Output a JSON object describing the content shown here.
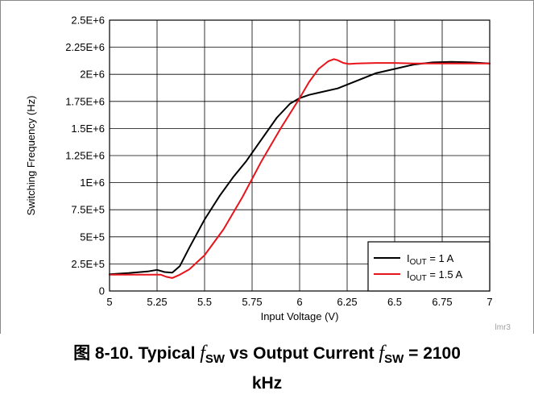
{
  "caption": {
    "prefix": "图 8-10. Typical ",
    "f_symbol": "f",
    "sub1": "SW",
    "middle": " vs Output Current ",
    "sub2": "SW",
    "suffix": " = 2100",
    "line2": "kHz"
  },
  "watermark": "lmr3",
  "chart_data": {
    "type": "line",
    "title": "",
    "xlabel": "Input Voltage (V)",
    "ylabel": "Switching Frequency (Hz)",
    "xlim": [
      5,
      7
    ],
    "ylim": [
      0,
      2500000
    ],
    "x_ticks": [
      5,
      5.25,
      5.5,
      5.75,
      6,
      6.25,
      6.5,
      6.75,
      7
    ],
    "x_tick_labels": [
      "5",
      "5.25",
      "5.5",
      "5.75",
      "6",
      "6.25",
      "6.5",
      "6.75",
      "7"
    ],
    "y_ticks": [
      0,
      250000,
      500000,
      750000,
      1000000,
      1250000,
      1500000,
      1750000,
      2000000,
      2250000,
      2500000
    ],
    "y_tick_labels": [
      "0",
      "2.5E+5",
      "5E+5",
      "7.5E+5",
      "1E+6",
      "1.25E+6",
      "1.5E+6",
      "1.75E+6",
      "2E+6",
      "2.25E+6",
      "2.5E+6"
    ],
    "grid": true,
    "legend_position": "bottom-right",
    "series": [
      {
        "name": "I",
        "name_sub": "OUT",
        "name_suffix": " = 1 A",
        "color": "#000000",
        "x": [
          5.0,
          5.1,
          5.2,
          5.25,
          5.29,
          5.33,
          5.37,
          5.42,
          5.5,
          5.58,
          5.65,
          5.72,
          5.8,
          5.88,
          5.95,
          6.0,
          6.05,
          6.1,
          6.2,
          6.3,
          6.4,
          6.5,
          6.6,
          6.7,
          6.8,
          6.9,
          7.0
        ],
        "y": [
          155000,
          165000,
          180000,
          195000,
          175000,
          170000,
          230000,
          400000,
          660000,
          880000,
          1050000,
          1200000,
          1400000,
          1600000,
          1730000,
          1780000,
          1810000,
          1830000,
          1870000,
          1940000,
          2010000,
          2050000,
          2090000,
          2110000,
          2115000,
          2110000,
          2100000
        ]
      },
      {
        "name": "I",
        "name_sub": "OUT",
        "name_suffix": " = 1.5 A",
        "color": "#e8141b",
        "x": [
          5.0,
          5.1,
          5.2,
          5.27,
          5.3,
          5.33,
          5.37,
          5.42,
          5.5,
          5.6,
          5.7,
          5.8,
          5.9,
          6.0,
          6.05,
          6.1,
          6.15,
          6.18,
          6.2,
          6.23,
          6.26,
          6.3,
          6.4,
          6.5,
          6.6,
          6.7,
          6.8,
          7.0
        ],
        "y": [
          150000,
          150000,
          150000,
          150000,
          130000,
          120000,
          150000,
          200000,
          330000,
          570000,
          870000,
          1200000,
          1500000,
          1780000,
          1930000,
          2050000,
          2120000,
          2140000,
          2130000,
          2105000,
          2095000,
          2100000,
          2105000,
          2105000,
          2100000,
          2100000,
          2100000,
          2100000
        ]
      }
    ]
  }
}
